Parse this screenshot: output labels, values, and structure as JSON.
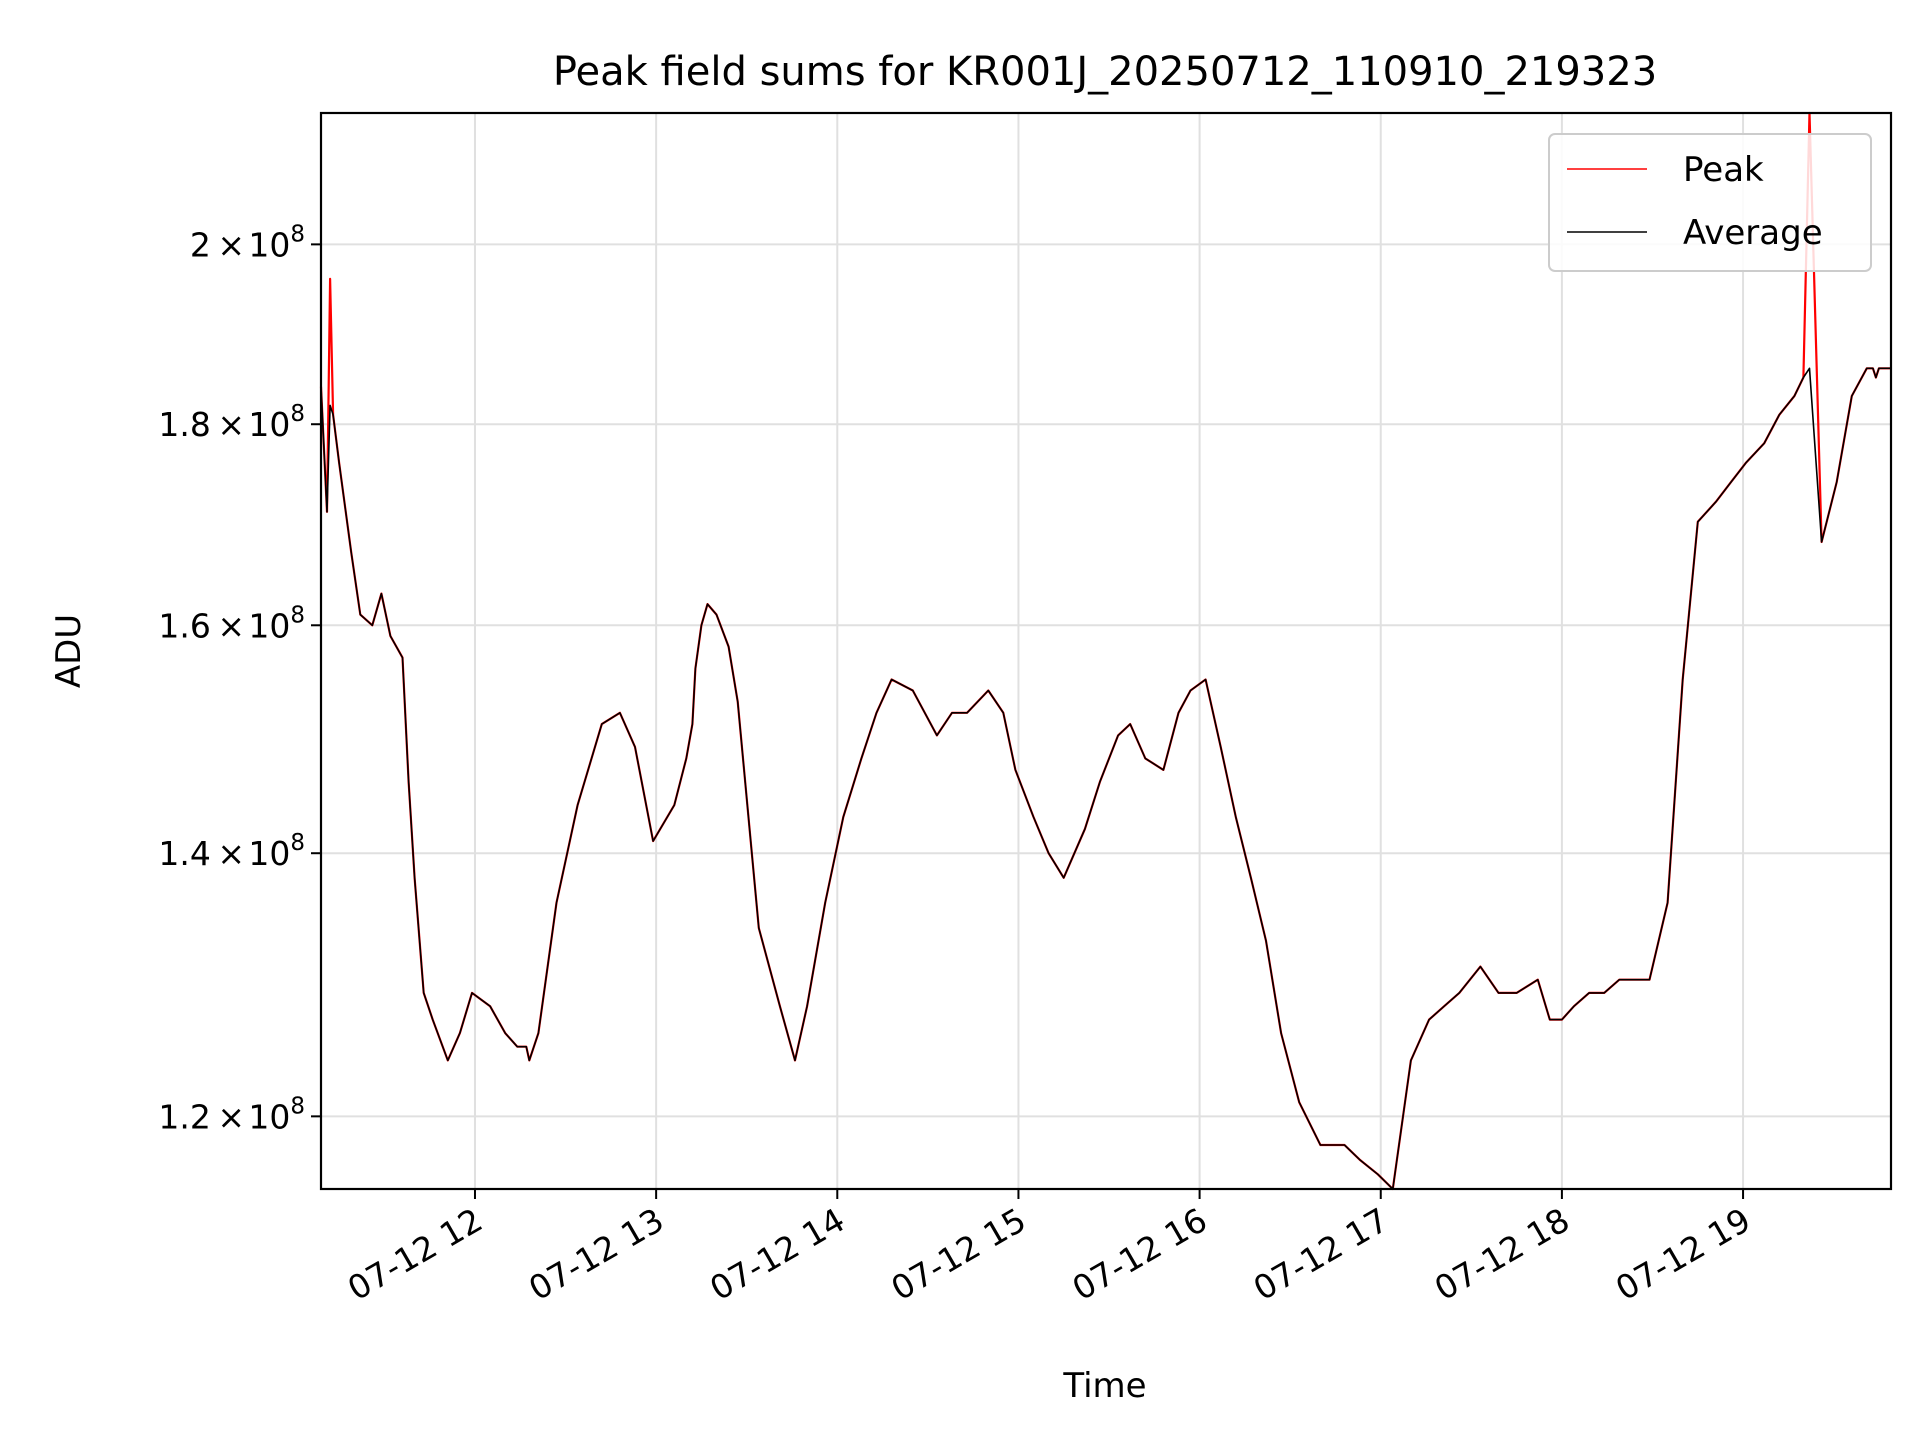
{
  "chart_data": {
    "type": "line",
    "title": "Peak field sums for KR001J_20250712_110910_219323",
    "xlabel": "Time",
    "ylabel": "ADU",
    "yscale": "log",
    "xlim": [
      "07-12 11:09",
      "07-12 19:49"
    ],
    "ylim": [
      115000000,
      216000000
    ],
    "xticks": [
      {
        "label": "07-12 12",
        "value": "07-12 12:00"
      },
      {
        "label": "07-12 13",
        "value": "07-12 13:00"
      },
      {
        "label": "07-12 14",
        "value": "07-12 14:00"
      },
      {
        "label": "07-12 15",
        "value": "07-12 15:00"
      },
      {
        "label": "07-12 16",
        "value": "07-12 16:00"
      },
      {
        "label": "07-12 17",
        "value": "07-12 17:00"
      },
      {
        "label": "07-12 18",
        "value": "07-12 18:00"
      },
      {
        "label": "07-12 19",
        "value": "07-12 19:00"
      }
    ],
    "yticks": [
      {
        "mantissa": "1.2",
        "value": 120000000
      },
      {
        "mantissa": "1.4",
        "value": 140000000
      },
      {
        "mantissa": "1.6",
        "value": 160000000
      },
      {
        "mantissa": "1.8",
        "value": 180000000
      },
      {
        "mantissa": "2",
        "value": 200000000
      }
    ],
    "ytick_base": "10",
    "ytick_exponent": "8",
    "grid": true,
    "legend_position": "top-right",
    "series": [
      {
        "name": "Peak",
        "color": "#ff0000",
        "x": [
          "07-12 11:09",
          "07-12 11:11",
          "07-12 11:12",
          "07-12 11:13",
          "07-12 11:15",
          "07-12 11:19",
          "07-12 11:22",
          "07-12 11:26",
          "07-12 11:29",
          "07-12 11:32",
          "07-12 11:36",
          "07-12 11:38",
          "07-12 11:40",
          "07-12 11:43",
          "07-12 11:46",
          "07-12 11:51",
          "07-12 11:55",
          "07-12 11:59",
          "07-12 12:05",
          "07-12 12:10",
          "07-12 12:14",
          "07-12 12:17",
          "07-12 12:18",
          "07-12 12:21",
          "07-12 12:27",
          "07-12 12:34",
          "07-12 12:42",
          "07-12 12:48",
          "07-12 12:53",
          "07-12 12:59",
          "07-12 13:06",
          "07-12 13:10",
          "07-12 13:12",
          "07-12 13:13",
          "07-12 13:15",
          "07-12 13:17",
          "07-12 13:20",
          "07-12 13:24",
          "07-12 13:27",
          "07-12 13:34",
          "07-12 13:41",
          "07-12 13:46",
          "07-12 13:50",
          "07-12 13:56",
          "07-12 14:02",
          "07-12 14:08",
          "07-12 14:13",
          "07-12 14:18",
          "07-12 14:25",
          "07-12 14:33",
          "07-12 14:38",
          "07-12 14:43",
          "07-12 14:50",
          "07-12 14:55",
          "07-12 14:59",
          "07-12 15:05",
          "07-12 15:10",
          "07-12 15:15",
          "07-12 15:22",
          "07-12 15:27",
          "07-12 15:33",
          "07-12 15:37",
          "07-12 15:42",
          "07-12 15:48",
          "07-12 15:53",
          "07-12 15:57",
          "07-12 16:02",
          "07-12 16:07",
          "07-12 16:12",
          "07-12 16:17",
          "07-12 16:22",
          "07-12 16:27",
          "07-12 16:33",
          "07-12 16:40",
          "07-12 16:48",
          "07-12 16:53",
          "07-12 16:59",
          "07-12 17:04",
          "07-12 17:10",
          "07-12 17:16",
          "07-12 17:21",
          "07-12 17:26",
          "07-12 17:33",
          "07-12 17:39",
          "07-12 17:45",
          "07-12 17:52",
          "07-12 17:56",
          "07-12 18:00",
          "07-12 18:04",
          "07-12 18:09",
          "07-12 18:14",
          "07-12 18:19",
          "07-12 18:23",
          "07-12 18:29",
          "07-12 18:35",
          "07-12 18:40",
          "07-12 18:45",
          "07-12 18:51",
          "07-12 18:56",
          "07-12 19:01",
          "07-12 19:07",
          "07-12 19:12",
          "07-12 19:17",
          "07-12 19:20",
          "07-12 19:22",
          "07-12 19:26",
          "07-12 19:31",
          "07-12 19:36",
          "07-12 19:41",
          "07-12 19:43",
          "07-12 19:44",
          "07-12 19:45",
          "07-12 19:47",
          "07-12 19:49"
        ],
        "y": [
          184000000,
          171000000,
          196000000,
          181000000,
          176000000,
          167000000,
          161000000,
          160000000,
          163000000,
          159000000,
          157000000,
          146000000,
          138000000,
          129000000,
          127000000,
          124000000,
          126000000,
          129000000,
          128000000,
          126000000,
          125000000,
          125000000,
          124000000,
          126000000,
          136000000,
          144000000,
          151000000,
          152000000,
          149000000,
          141000000,
          144000000,
          148000000,
          151000000,
          156000000,
          160000000,
          162000000,
          161000000,
          158000000,
          153000000,
          134000000,
          128000000,
          124000000,
          128000000,
          136000000,
          143000000,
          148000000,
          152000000,
          155000000,
          154000000,
          150000000,
          152000000,
          152000000,
          154000000,
          152000000,
          147000000,
          143000000,
          140000000,
          138000000,
          142000000,
          146000000,
          150000000,
          151000000,
          148000000,
          147000000,
          152000000,
          154000000,
          155000000,
          149000000,
          143000000,
          138000000,
          133000000,
          126000000,
          121000000,
          118000000,
          118000000,
          117000000,
          116000000,
          115000000,
          124000000,
          127000000,
          128000000,
          129000000,
          131000000,
          129000000,
          129000000,
          130000000,
          127000000,
          127000000,
          128000000,
          129000000,
          129000000,
          130000000,
          130000000,
          130000000,
          136000000,
          155000000,
          170000000,
          172000000,
          174000000,
          176000000,
          178000000,
          181000000,
          183000000,
          185000000,
          216000000,
          168000000,
          174000000,
          183000000,
          186000000,
          186000000,
          185000000,
          186000000,
          186000000,
          186000000
        ],
        "note": ""
      },
      {
        "name": "Average",
        "color": "#000000",
        "x": [
          "07-12 11:09",
          "07-12 11:11",
          "07-12 11:12",
          "07-12 11:13",
          "07-12 11:15",
          "07-12 11:19",
          "07-12 11:22",
          "07-12 11:26",
          "07-12 11:29",
          "07-12 11:32",
          "07-12 11:36",
          "07-12 11:38",
          "07-12 11:40",
          "07-12 11:43",
          "07-12 11:46",
          "07-12 11:51",
          "07-12 11:55",
          "07-12 11:59",
          "07-12 12:05",
          "07-12 12:10",
          "07-12 12:14",
          "07-12 12:17",
          "07-12 12:18",
          "07-12 12:21",
          "07-12 12:27",
          "07-12 12:34",
          "07-12 12:42",
          "07-12 12:48",
          "07-12 12:53",
          "07-12 12:59",
          "07-12 13:06",
          "07-12 13:10",
          "07-12 13:12",
          "07-12 13:13",
          "07-12 13:15",
          "07-12 13:17",
          "07-12 13:20",
          "07-12 13:24",
          "07-12 13:27",
          "07-12 13:34",
          "07-12 13:41",
          "07-12 13:46",
          "07-12 13:50",
          "07-12 13:56",
          "07-12 14:02",
          "07-12 14:08",
          "07-12 14:13",
          "07-12 14:18",
          "07-12 14:25",
          "07-12 14:33",
          "07-12 14:38",
          "07-12 14:43",
          "07-12 14:50",
          "07-12 14:55",
          "07-12 14:59",
          "07-12 15:05",
          "07-12 15:10",
          "07-12 15:15",
          "07-12 15:22",
          "07-12 15:27",
          "07-12 15:33",
          "07-12 15:37",
          "07-12 15:42",
          "07-12 15:48",
          "07-12 15:53",
          "07-12 15:57",
          "07-12 16:02",
          "07-12 16:07",
          "07-12 16:12",
          "07-12 16:17",
          "07-12 16:22",
          "07-12 16:27",
          "07-12 16:33",
          "07-12 16:40",
          "07-12 16:48",
          "07-12 16:53",
          "07-12 16:59",
          "07-12 17:04",
          "07-12 17:10",
          "07-12 17:16",
          "07-12 17:21",
          "07-12 17:26",
          "07-12 17:33",
          "07-12 17:39",
          "07-12 17:45",
          "07-12 17:52",
          "07-12 17:56",
          "07-12 18:00",
          "07-12 18:04",
          "07-12 18:09",
          "07-12 18:14",
          "07-12 18:19",
          "07-12 18:23",
          "07-12 18:29",
          "07-12 18:35",
          "07-12 18:40",
          "07-12 18:45",
          "07-12 18:51",
          "07-12 18:56",
          "07-12 19:01",
          "07-12 19:07",
          "07-12 19:12",
          "07-12 19:17",
          "07-12 19:20",
          "07-12 19:22",
          "07-12 19:26",
          "07-12 19:31",
          "07-12 19:36",
          "07-12 19:41",
          "07-12 19:43",
          "07-12 19:44",
          "07-12 19:45",
          "07-12 19:47",
          "07-12 19:49"
        ],
        "y": [
          184000000,
          171000000,
          182000000,
          181000000,
          176000000,
          167000000,
          161000000,
          160000000,
          163000000,
          159000000,
          157000000,
          146000000,
          138000000,
          129000000,
          127000000,
          124000000,
          126000000,
          129000000,
          128000000,
          126000000,
          125000000,
          125000000,
          124000000,
          126000000,
          136000000,
          144000000,
          151000000,
          152000000,
          149000000,
          141000000,
          144000000,
          148000000,
          151000000,
          156000000,
          160000000,
          162000000,
          161000000,
          158000000,
          153000000,
          134000000,
          128000000,
          124000000,
          128000000,
          136000000,
          143000000,
          148000000,
          152000000,
          155000000,
          154000000,
          150000000,
          152000000,
          152000000,
          154000000,
          152000000,
          147000000,
          143000000,
          140000000,
          138000000,
          142000000,
          146000000,
          150000000,
          151000000,
          148000000,
          147000000,
          152000000,
          154000000,
          155000000,
          149000000,
          143000000,
          138000000,
          133000000,
          126000000,
          121000000,
          118000000,
          118000000,
          117000000,
          116000000,
          115000000,
          124000000,
          127000000,
          128000000,
          129000000,
          131000000,
          129000000,
          129000000,
          130000000,
          127000000,
          127000000,
          128000000,
          129000000,
          129000000,
          130000000,
          130000000,
          130000000,
          136000000,
          155000000,
          170000000,
          172000000,
          174000000,
          176000000,
          178000000,
          181000000,
          183000000,
          185000000,
          186000000,
          168000000,
          174000000,
          183000000,
          186000000,
          186000000,
          185000000,
          186000000,
          186000000,
          186000000
        ]
      }
    ]
  }
}
